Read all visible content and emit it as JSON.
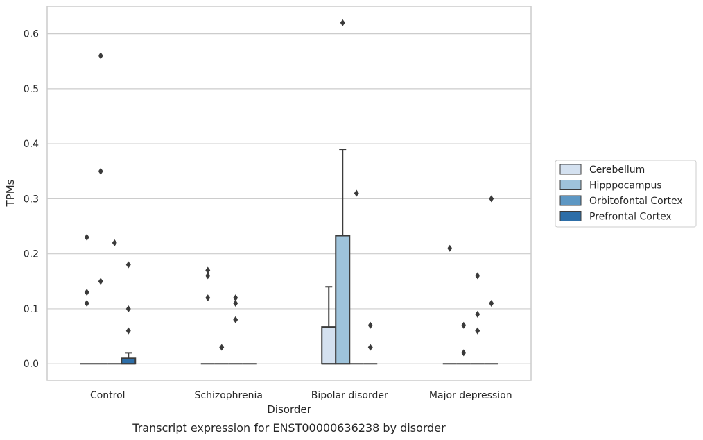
{
  "chart_data": {
    "type": "box",
    "caption": "Transcript expression for ENST00000636238 by disorder",
    "xlabel": "Disorder",
    "ylabel": "TPMs",
    "ylim": [
      -0.03,
      0.65
    ],
    "yticks": [
      0.0,
      0.1,
      0.2,
      0.3,
      0.4,
      0.5,
      0.6
    ],
    "ytick_labels": [
      "0.0",
      "0.1",
      "0.2",
      "0.3",
      "0.4",
      "0.5",
      "0.6"
    ],
    "grid": "horizontal",
    "legend_position": "right",
    "categories": [
      "Control",
      "Schizophrenia",
      "Bipolar disorder",
      "Major depression"
    ],
    "series": [
      {
        "name": "Cerebellum",
        "color": "#d4e1f0",
        "boxes": [
          {
            "q1": 0,
            "median": 0,
            "q3": 0,
            "whisker_low": 0,
            "whisker_high": 0,
            "outliers": [
              0.11,
              0.13,
              0.23
            ]
          },
          {
            "q1": 0,
            "median": 0,
            "q3": 0,
            "whisker_low": 0,
            "whisker_high": 0,
            "outliers": [
              0.12,
              0.16,
              0.17
            ]
          },
          {
            "q1": 0,
            "median": 0,
            "q3": 0.067,
            "whisker_low": 0,
            "whisker_high": 0.14,
            "outliers": []
          },
          {
            "q1": 0,
            "median": 0,
            "q3": 0,
            "whisker_low": 0,
            "whisker_high": 0,
            "outliers": [
              0.21
            ]
          }
        ]
      },
      {
        "name": "Hipppocampus",
        "color": "#9ec3db",
        "boxes": [
          {
            "q1": 0,
            "median": 0,
            "q3": 0,
            "whisker_low": 0,
            "whisker_high": 0,
            "outliers": [
              0.15,
              0.35,
              0.56
            ]
          },
          {
            "q1": 0,
            "median": 0,
            "q3": 0,
            "whisker_low": 0,
            "whisker_high": 0,
            "outliers": [
              0.03
            ]
          },
          {
            "q1": 0,
            "median": 0,
            "q3": 0.233,
            "whisker_low": 0,
            "whisker_high": 0.39,
            "outliers": [
              0.62
            ]
          },
          {
            "q1": 0,
            "median": 0,
            "q3": 0,
            "whisker_low": 0,
            "whisker_high": 0,
            "outliers": [
              0.02,
              0.07
            ]
          }
        ]
      },
      {
        "name": "Orbitofontal Cortex",
        "color": "#5d97c3",
        "boxes": [
          {
            "q1": 0,
            "median": 0,
            "q3": 0,
            "whisker_low": 0,
            "whisker_high": 0,
            "outliers": [
              0.22
            ]
          },
          {
            "q1": 0,
            "median": 0,
            "q3": 0,
            "whisker_low": 0,
            "whisker_high": 0,
            "outliers": [
              0.08,
              0.11,
              0.12
            ]
          },
          {
            "q1": 0,
            "median": 0,
            "q3": 0,
            "whisker_low": 0,
            "whisker_high": 0,
            "outliers": [
              0.31
            ]
          },
          {
            "q1": 0,
            "median": 0,
            "q3": 0,
            "whisker_low": 0,
            "whisker_high": 0,
            "outliers": [
              0.06,
              0.09,
              0.16
            ]
          }
        ]
      },
      {
        "name": "Prefrontal Cortex",
        "color": "#2d6ea8",
        "boxes": [
          {
            "q1": 0,
            "median": 0,
            "q3": 0.01,
            "whisker_low": 0,
            "whisker_high": 0.02,
            "outliers": [
              0.06,
              0.1,
              0.18
            ]
          },
          {
            "q1": 0,
            "median": 0,
            "q3": 0,
            "whisker_low": 0,
            "whisker_high": 0,
            "outliers": []
          },
          {
            "q1": 0,
            "median": 0,
            "q3": 0,
            "whisker_low": 0,
            "whisker_high": 0,
            "outliers": [
              0.03,
              0.07
            ]
          },
          {
            "q1": 0,
            "median": 0,
            "q3": 0,
            "whisker_low": 0,
            "whisker_high": 0,
            "outliers": [
              0.11,
              0.3
            ]
          }
        ]
      }
    ]
  }
}
